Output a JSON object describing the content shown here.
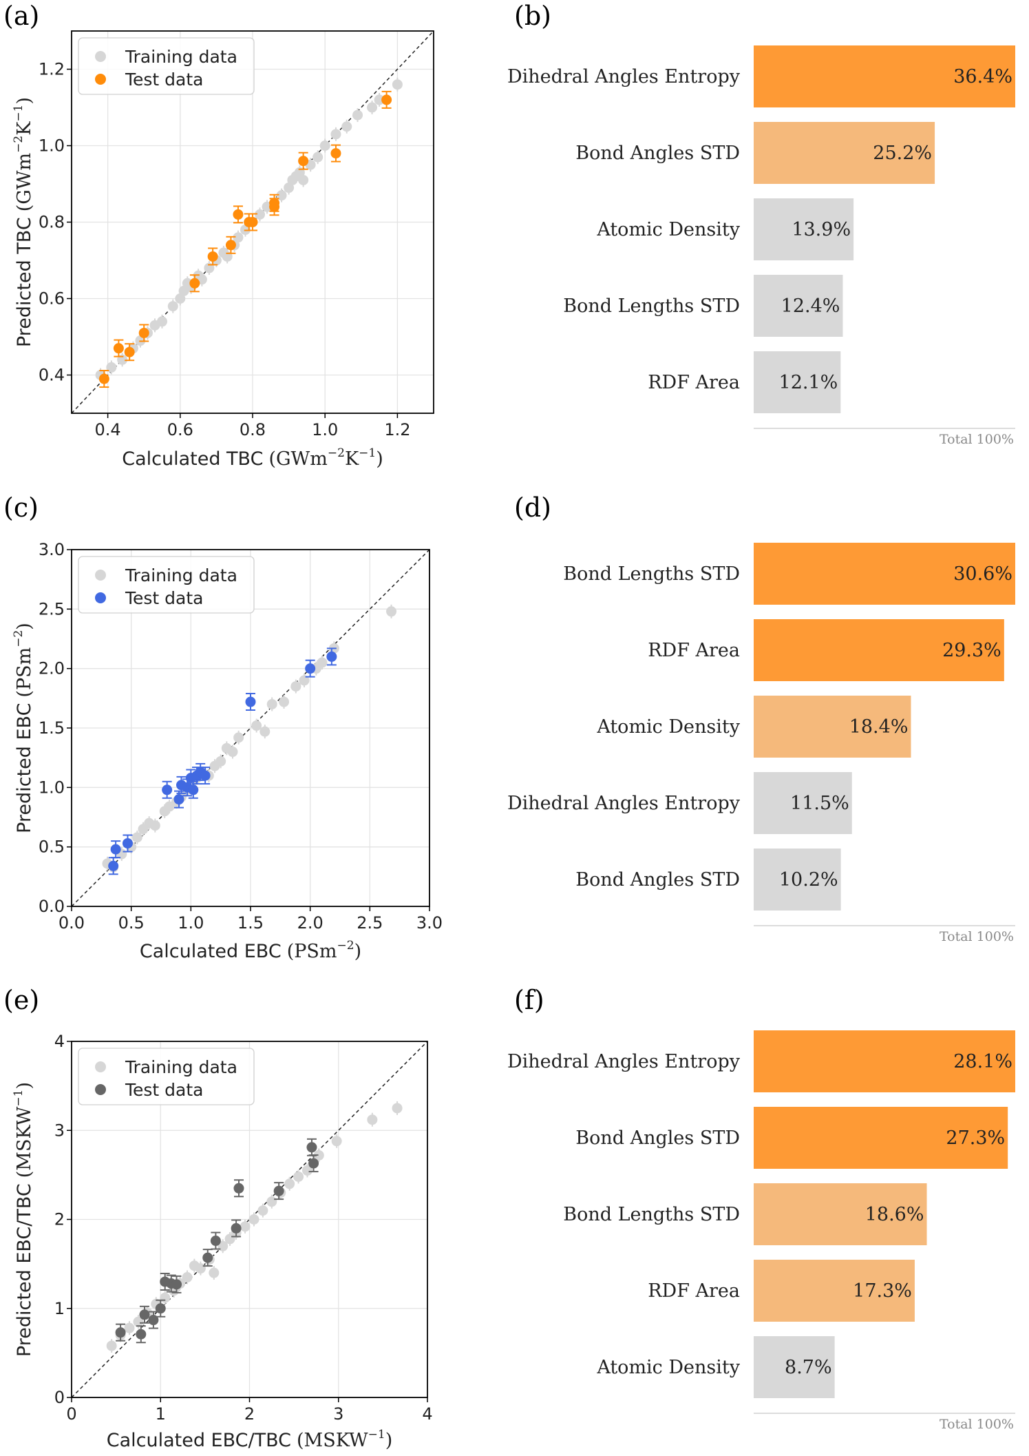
{
  "chart_data": [
    {
      "id": "a",
      "type": "scatter",
      "panel_label": "(a)",
      "xlabel_main": "Calculated TBC",
      "xlabel_unit": "(GWm",
      "xlabel_sup1": "−2",
      "xlabel_mid": "K",
      "xlabel_sup2": "−1",
      "xlabel_close": ")",
      "ylabel_main": "Predicted TBC",
      "ylabel_unit": "(GWm",
      "ylabel_sup1": "−2",
      "ylabel_mid": "K",
      "ylabel_sup2": "−1",
      "ylabel_close": ")",
      "xlim": [
        0.3,
        1.3
      ],
      "ylim": [
        0.3,
        1.3
      ],
      "xticks": [
        0.4,
        0.6,
        0.8,
        1.0,
        1.2
      ],
      "xtick_labels": [
        "0.4",
        "0.6",
        "0.8",
        "1.0",
        "1.2"
      ],
      "yticks": [
        0.4,
        0.6,
        0.8,
        1.0,
        1.2
      ],
      "ytick_labels": [
        "0.4",
        "0.6",
        "0.8",
        "1.0",
        "1.2"
      ],
      "grid": true,
      "legend": "top-left",
      "test_color": "#ff8c0a",
      "series": [
        {
          "name": "Training data",
          "color": "#d6d6d6",
          "x": [
            0.38,
            0.41,
            0.44,
            0.47,
            0.49,
            0.51,
            0.53,
            0.55,
            0.58,
            0.6,
            0.61,
            0.62,
            0.63,
            0.65,
            0.66,
            0.68,
            0.7,
            0.72,
            0.73,
            0.75,
            0.76,
            0.78,
            0.8,
            0.82,
            0.84,
            0.86,
            0.88,
            0.9,
            0.91,
            0.92,
            0.93,
            0.94,
            0.96,
            0.98,
            1.0,
            1.03,
            1.06,
            1.09,
            1.13,
            1.15,
            1.2
          ],
          "y": [
            0.4,
            0.42,
            0.44,
            0.47,
            0.49,
            0.51,
            0.53,
            0.54,
            0.58,
            0.6,
            0.62,
            0.64,
            0.63,
            0.66,
            0.65,
            0.68,
            0.7,
            0.72,
            0.71,
            0.74,
            0.76,
            0.78,
            0.8,
            0.82,
            0.84,
            0.85,
            0.87,
            0.89,
            0.91,
            0.92,
            0.93,
            0.91,
            0.95,
            0.97,
            1.0,
            1.03,
            1.05,
            1.08,
            1.1,
            1.12,
            1.16
          ]
        },
        {
          "name": "Test data",
          "color": "#ff8c0a",
          "x": [
            0.39,
            0.43,
            0.46,
            0.5,
            0.64,
            0.69,
            0.74,
            0.76,
            0.79,
            0.8,
            0.86,
            0.86,
            0.94,
            1.03,
            1.17
          ],
          "y": [
            0.39,
            0.47,
            0.46,
            0.51,
            0.64,
            0.71,
            0.74,
            0.82,
            0.8,
            0.8,
            0.84,
            0.85,
            0.96,
            0.98,
            1.12
          ]
        }
      ]
    },
    {
      "id": "b",
      "type": "bar",
      "panel_label": "(b)",
      "categories": [
        "Dihedral Angles Entropy",
        "Bond Angles STD",
        "Atomic Density",
        "Bond Lengths STD",
        "RDF Area"
      ],
      "values": [
        36.4,
        25.2,
        13.9,
        12.4,
        12.1
      ],
      "value_labels": [
        "36.4%",
        "25.2%",
        "13.9%",
        "12.4%",
        "12.1%"
      ],
      "colors": [
        "#fe9a35",
        "#f5b97b",
        "#d8d8d8",
        "#d8d8d8",
        "#d8d8d8"
      ],
      "xlim": [
        0,
        36.4
      ],
      "total_label": "Total 100%"
    },
    {
      "id": "c",
      "type": "scatter",
      "panel_label": "(c)",
      "xlabel_main": "Calculated EBC",
      "xlabel_unit": "(PSm",
      "xlabel_sup1": "−2",
      "xlabel_close": ")",
      "ylabel_main": "Predicted EBC",
      "ylabel_unit": "(PSm",
      "ylabel_sup1": "−2",
      "ylabel_close": ")",
      "xlim": [
        0.0,
        3.0
      ],
      "ylim": [
        0.0,
        3.0
      ],
      "xticks": [
        0.0,
        0.5,
        1.0,
        1.5,
        2.0,
        2.5,
        3.0
      ],
      "xtick_labels": [
        "0.0",
        "0.5",
        "1.0",
        "1.5",
        "2.0",
        "2.5",
        "3.0"
      ],
      "yticks": [
        0.0,
        0.5,
        1.0,
        1.5,
        2.0,
        2.5,
        3.0
      ],
      "ytick_labels": [
        "0.0",
        "0.5",
        "1.0",
        "1.5",
        "2.0",
        "2.5",
        "3.0"
      ],
      "grid": true,
      "legend": "top-left",
      "test_color": "#4169e1",
      "series": [
        {
          "name": "Training data",
          "color": "#d6d6d6",
          "x": [
            0.3,
            0.35,
            0.42,
            0.5,
            0.55,
            0.6,
            0.65,
            0.7,
            0.78,
            0.82,
            0.88,
            0.92,
            0.96,
            1.0,
            1.05,
            1.1,
            1.15,
            1.2,
            1.25,
            1.3,
            1.35,
            1.4,
            1.55,
            1.62,
            1.68,
            1.78,
            1.88,
            1.95,
            2.05,
            2.1,
            2.2,
            2.68
          ],
          "y": [
            0.36,
            0.33,
            0.44,
            0.5,
            0.58,
            0.65,
            0.7,
            0.68,
            0.8,
            0.84,
            0.88,
            0.92,
            0.98,
            1.02,
            1.08,
            1.12,
            1.1,
            1.18,
            1.22,
            1.33,
            1.3,
            1.42,
            1.52,
            1.47,
            1.7,
            1.72,
            1.85,
            1.9,
            2.0,
            2.05,
            2.17,
            2.48
          ]
        },
        {
          "name": "Test data",
          "color": "#4169e1",
          "x": [
            0.35,
            0.37,
            0.47,
            0.8,
            0.9,
            0.92,
            0.97,
            1.0,
            1.02,
            1.05,
            1.08,
            1.12,
            1.5,
            2.0,
            2.18
          ],
          "y": [
            0.34,
            0.48,
            0.53,
            0.98,
            0.9,
            1.02,
            1.0,
            1.08,
            0.98,
            1.1,
            1.13,
            1.1,
            1.72,
            2.0,
            2.1
          ]
        }
      ]
    },
    {
      "id": "d",
      "type": "bar",
      "panel_label": "(d)",
      "categories": [
        "Bond Lengths STD",
        "RDF Area",
        "Atomic Density",
        "Dihedral Angles Entropy",
        "Bond Angles STD"
      ],
      "values": [
        30.6,
        29.3,
        18.4,
        11.5,
        10.2
      ],
      "value_labels": [
        "30.6%",
        "29.3%",
        "18.4%",
        "11.5%",
        "10.2%"
      ],
      "colors": [
        "#fe9a35",
        "#fe9a35",
        "#f5b97b",
        "#d8d8d8",
        "#d8d8d8"
      ],
      "xlim": [
        0,
        30.6
      ],
      "total_label": "Total 100%"
    },
    {
      "id": "e",
      "type": "scatter",
      "panel_label": "(e)",
      "xlabel_main": "Calculated EBC/TBC",
      "xlabel_unit": "(MSKW",
      "xlabel_sup1": "−1",
      "xlabel_close": ")",
      "ylabel_main": "Predicted EBC/TBC",
      "ylabel_unit": "(MSKW",
      "ylabel_sup1": "−1",
      "ylabel_close": ")",
      "xlim": [
        0,
        4
      ],
      "ylim": [
        0,
        4
      ],
      "xticks": [
        0,
        1,
        2,
        3,
        4
      ],
      "xtick_labels": [
        "0",
        "1",
        "2",
        "3",
        "4"
      ],
      "yticks": [
        0,
        1,
        2,
        3,
        4
      ],
      "ytick_labels": [
        "0",
        "1",
        "2",
        "3",
        "4"
      ],
      "grid": true,
      "legend": "top-left",
      "test_color": "#666666",
      "series": [
        {
          "name": "Training data",
          "color": "#d6d6d6",
          "x": [
            0.45,
            0.55,
            0.65,
            0.75,
            0.85,
            0.95,
            1.05,
            1.15,
            1.22,
            1.3,
            1.38,
            1.45,
            1.55,
            1.6,
            1.7,
            1.78,
            1.85,
            1.95,
            2.05,
            2.15,
            2.25,
            2.35,
            2.45,
            2.55,
            2.65,
            2.78,
            2.98,
            3.38,
            3.66
          ],
          "y": [
            0.58,
            0.7,
            0.78,
            0.85,
            0.95,
            1.05,
            1.12,
            1.2,
            1.28,
            1.35,
            1.48,
            1.45,
            1.55,
            1.4,
            1.7,
            1.78,
            1.85,
            1.92,
            2.0,
            2.1,
            2.2,
            2.3,
            2.4,
            2.48,
            2.55,
            2.72,
            2.88,
            3.12,
            3.25
          ]
        },
        {
          "name": "Test data",
          "color": "#666666",
          "x": [
            0.55,
            0.78,
            0.82,
            0.92,
            1.0,
            1.05,
            1.12,
            1.18,
            1.53,
            1.62,
            1.85,
            1.88,
            2.33,
            2.7,
            2.72
          ],
          "y": [
            0.73,
            0.71,
            0.93,
            0.87,
            1.0,
            1.3,
            1.28,
            1.27,
            1.57,
            1.76,
            1.9,
            2.35,
            2.32,
            2.81,
            2.63
          ]
        }
      ]
    },
    {
      "id": "f",
      "type": "bar",
      "panel_label": "(f)",
      "categories": [
        "Dihedral Angles Entropy",
        "Bond Angles STD",
        "Bond Lengths STD",
        "RDF Area",
        "Atomic Density"
      ],
      "values": [
        28.1,
        27.3,
        18.6,
        17.3,
        8.7
      ],
      "value_labels": [
        "28.1%",
        "27.3%",
        "18.6%",
        "17.3%",
        "8.7%"
      ],
      "colors": [
        "#fe9a35",
        "#fe9a35",
        "#f5b97b",
        "#f5b97b",
        "#d8d8d8"
      ],
      "xlim": [
        0,
        28.1
      ],
      "total_label": "Total 100%"
    }
  ]
}
